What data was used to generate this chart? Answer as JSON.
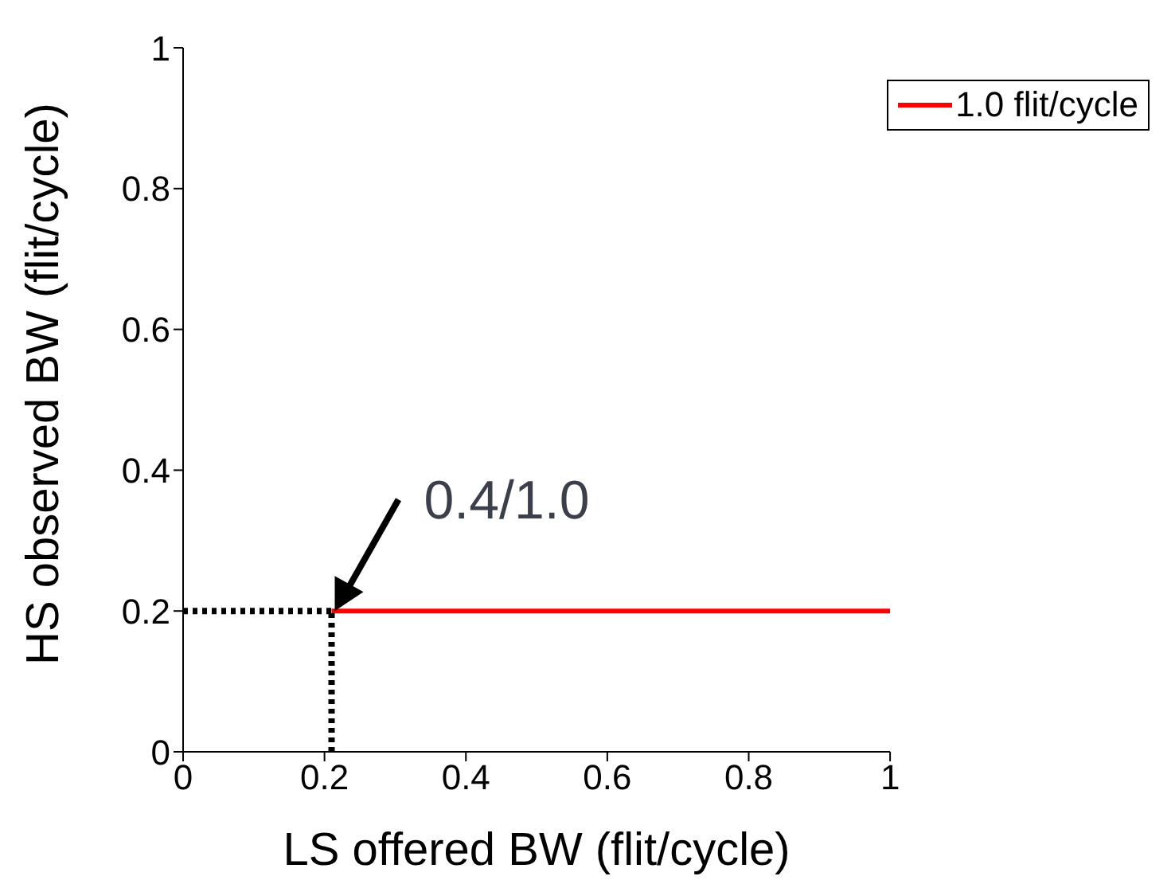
{
  "chart_data": {
    "type": "line",
    "xlabel": "LS offered BW (flit/cycle)",
    "ylabel": "HS observed BW (flit/cycle)",
    "xlim": [
      0,
      1
    ],
    "ylim": [
      0,
      1
    ],
    "xticks": [
      0,
      0.2,
      0.4,
      0.6,
      0.8,
      1
    ],
    "yticks": [
      0,
      0.2,
      0.4,
      0.6,
      0.8,
      1
    ],
    "grid": false,
    "legend": "top right",
    "marker": "none",
    "series": [
      {
        "name": "1.0 flit/cycle",
        "color": "#ff0000",
        "x": [
          0.21,
          1
        ],
        "values": [
          0.2,
          0.2
        ],
        "line_style": "solid"
      },
      {
        "color": "#000000",
        "x": [
          0,
          0.21
        ],
        "values": [
          0.2,
          0.2
        ],
        "line_style": "dotted"
      },
      {
        "color": "#000000",
        "x": [
          0.21,
          0.21
        ],
        "values": [
          0,
          0.2
        ],
        "line_style": "dotted"
      }
    ],
    "annotations": [
      {
        "text": "0.4/1.0",
        "x": 0.21,
        "y": 0.2
      }
    ]
  }
}
